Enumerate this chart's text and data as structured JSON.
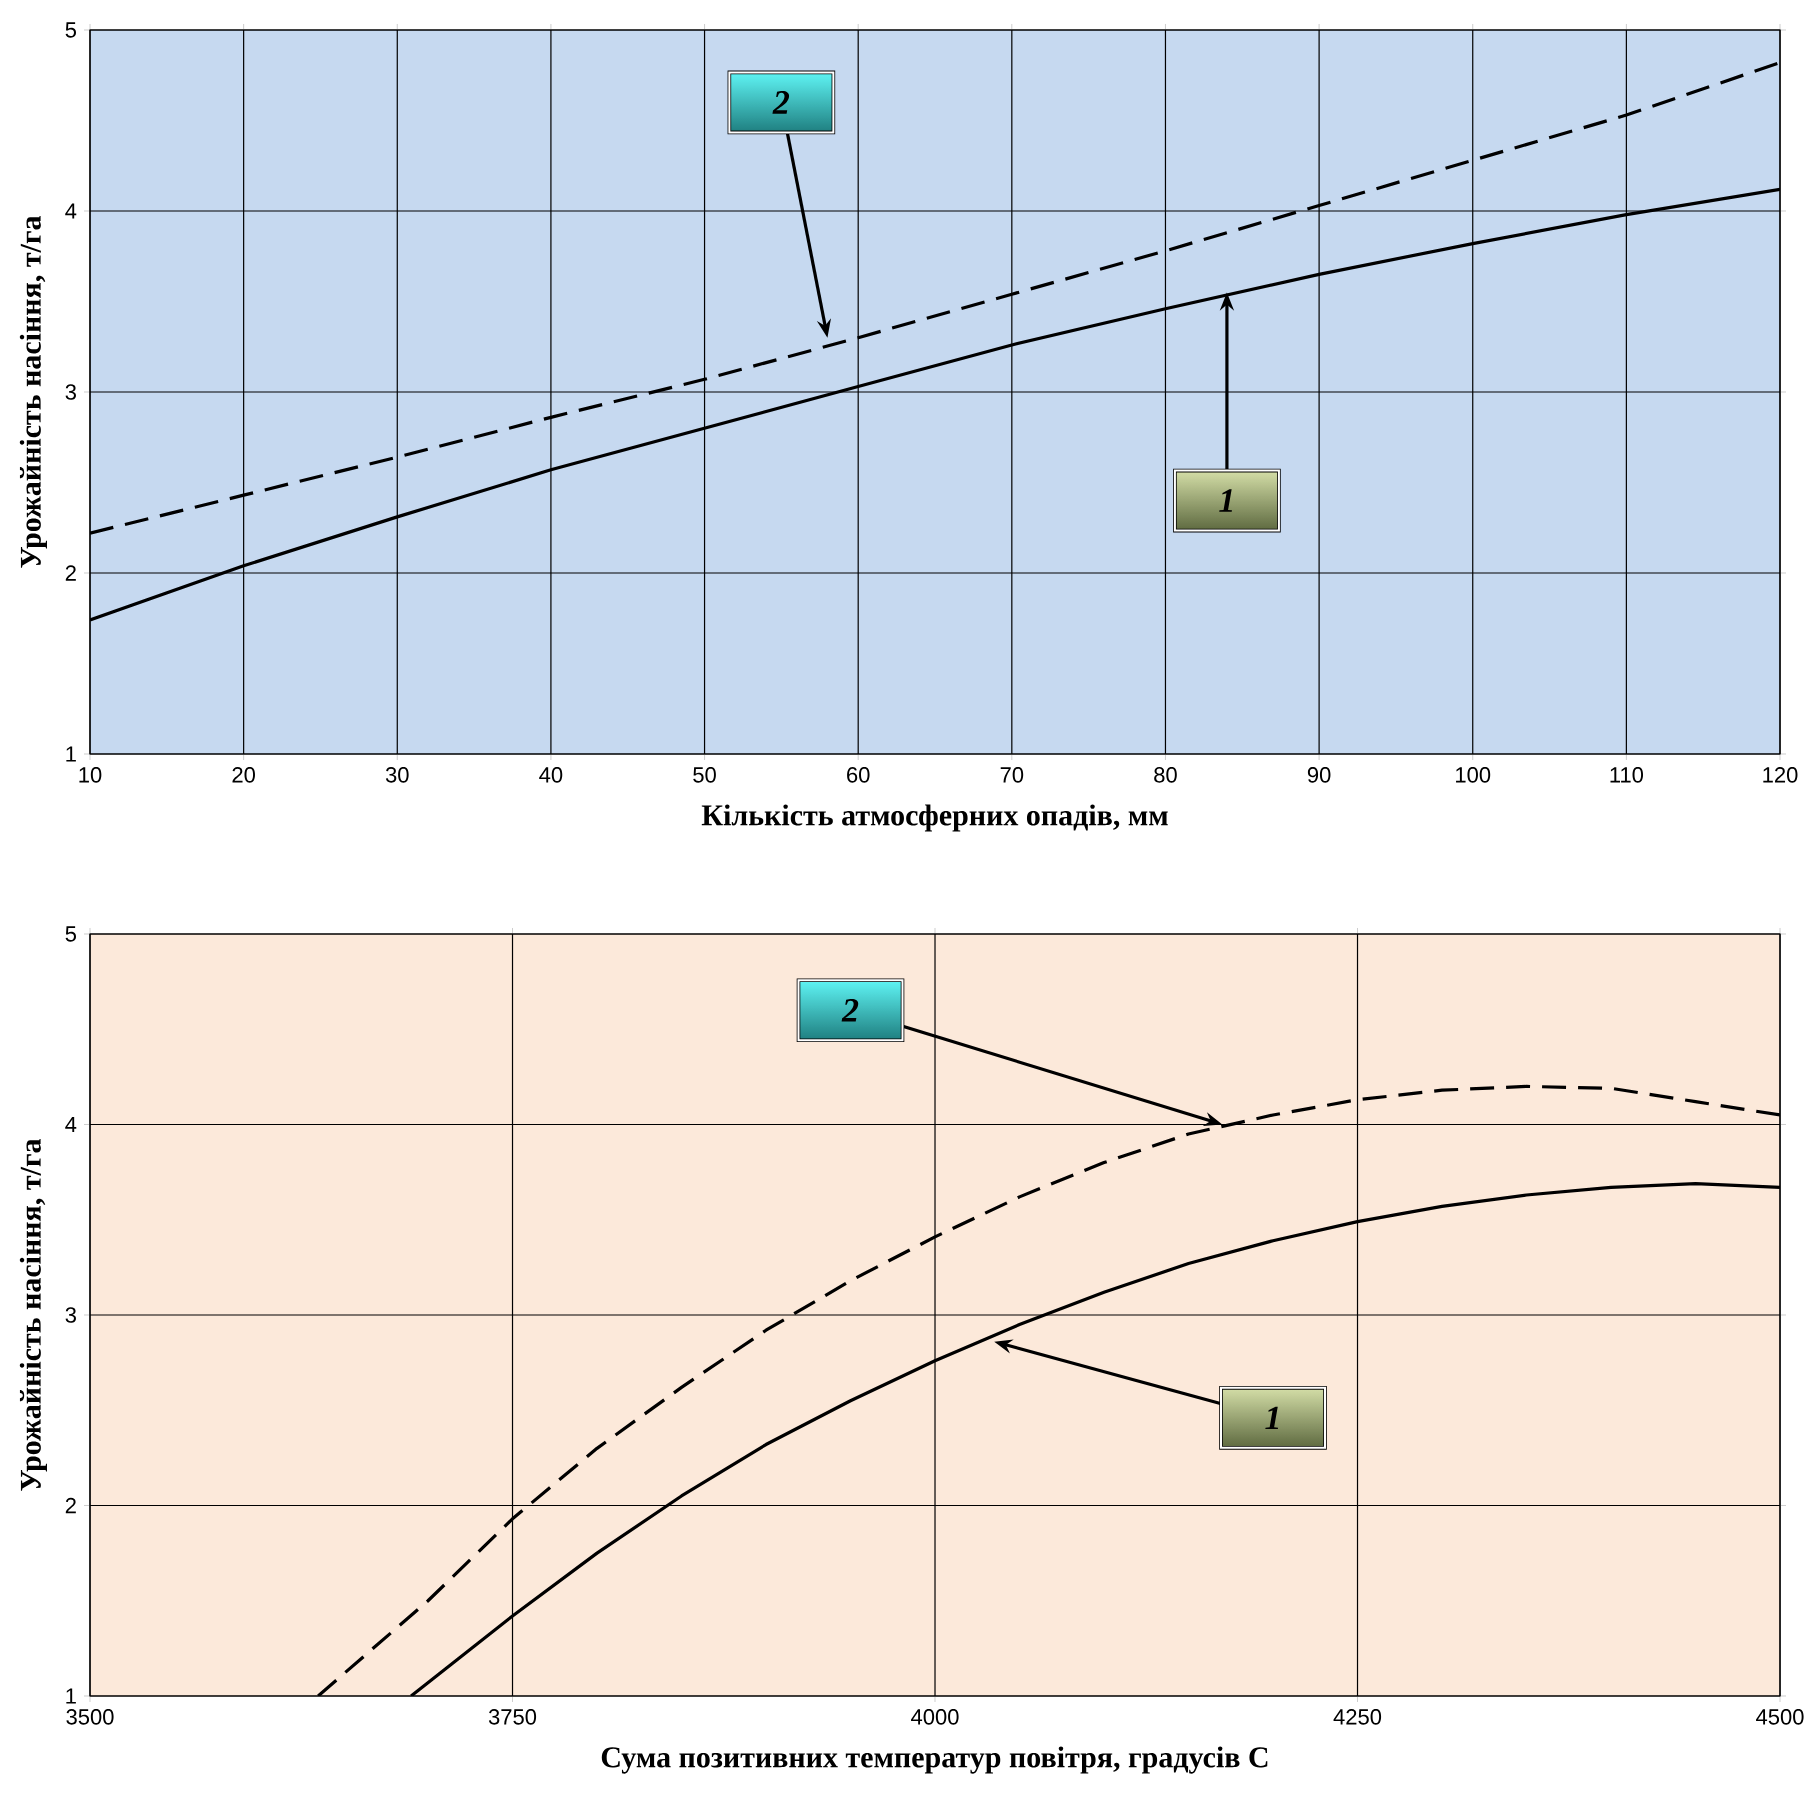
{
  "chart_data": [
    {
      "type": "line",
      "xlabel": "Кількість атмосферних опадів, мм",
      "ylabel": "Урожайність насіння, т/га",
      "x": [
        10,
        20,
        30,
        40,
        50,
        60,
        70,
        80,
        90,
        100,
        110,
        120
      ],
      "series": [
        {
          "color": "#000000",
          "line_style": "solid",
          "values": [
            1.74,
            2.04,
            2.31,
            2.57,
            2.8,
            3.03,
            3.26,
            3.46,
            3.65,
            3.82,
            3.98,
            4.12
          ]
        },
        {
          "color": "#000000",
          "line_style": "dashed",
          "values": [
            2.22,
            2.43,
            2.64,
            2.86,
            3.07,
            3.3,
            3.54,
            3.78,
            4.03,
            4.28,
            4.53,
            4.82
          ]
        }
      ],
      "annotations": [
        {
          "text": "2",
          "x": 58,
          "y": 3.3
        },
        {
          "text": "1",
          "x": 84,
          "y": 3.55
        }
      ],
      "xlim": [
        10,
        120
      ],
      "ylim": [
        1,
        5
      ],
      "xticks": [
        10,
        20,
        30,
        40,
        50,
        60,
        70,
        80,
        90,
        100,
        110,
        120
      ],
      "yticks": [
        1,
        2,
        3,
        4,
        5
      ],
      "grid": true,
      "marker": "none"
    },
    {
      "type": "line",
      "xlabel": "Сума позитивних температур повітря, градусів С",
      "ylabel": "Урожайність насіння, т/га",
      "series": [
        {
          "color": "#000000",
          "line_style": "solid",
          "x": [
            3690,
            3750,
            3800,
            3850,
            3900,
            3950,
            4000,
            4050,
            4100,
            4150,
            4200,
            4250,
            4300,
            4350,
            4400,
            4450,
            4500
          ],
          "values": [
            1.0,
            1.42,
            1.75,
            2.05,
            2.32,
            2.55,
            2.76,
            2.95,
            3.12,
            3.27,
            3.39,
            3.49,
            3.57,
            3.63,
            3.67,
            3.69,
            3.67
          ]
        },
        {
          "color": "#000000",
          "line_style": "dashed",
          "x": [
            3635,
            3700,
            3750,
            3800,
            3850,
            3900,
            3950,
            4000,
            4050,
            4100,
            4150,
            4200,
            4250,
            4300,
            4350,
            4400,
            4450,
            4500
          ],
          "values": [
            1.0,
            1.5,
            1.93,
            2.3,
            2.62,
            2.92,
            3.18,
            3.41,
            3.62,
            3.8,
            3.95,
            4.05,
            4.13,
            4.18,
            4.2,
            4.19,
            4.12,
            4.05
          ]
        }
      ],
      "annotations": [
        {
          "text": "2",
          "x": 4170,
          "y": 4.0
        },
        {
          "text": "1",
          "x": 4035,
          "y": 2.86
        }
      ],
      "xlim": [
        3500,
        4500
      ],
      "ylim": [
        1,
        5
      ],
      "xticks": [
        3500,
        3750,
        4000,
        4250,
        4500
      ],
      "yticks": [
        1,
        2,
        3,
        4,
        5
      ],
      "grid": true,
      "marker": "none"
    }
  ]
}
